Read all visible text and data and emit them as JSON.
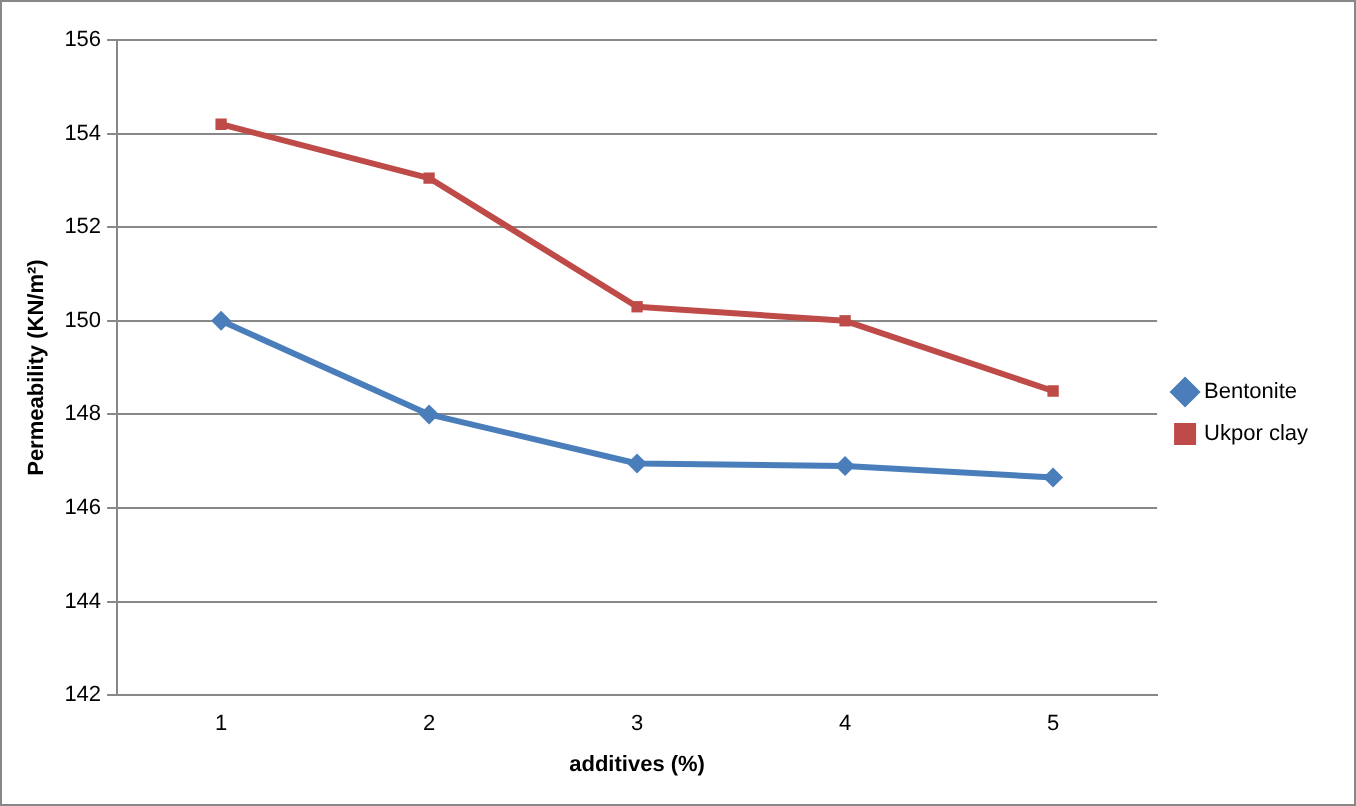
{
  "chart_data": {
    "type": "line",
    "xlabel": "additives (%)",
    "ylabel": "Permeability (KN/m²)",
    "categories": [
      "1",
      "2",
      "3",
      "4",
      "5"
    ],
    "series": [
      {
        "name": "Bentonite",
        "color": "#4a7ebb",
        "marker": "diamond",
        "values": [
          150,
          148,
          146.95,
          146.9,
          146.65
        ]
      },
      {
        "name": "Ukpor clay",
        "color": "#be4b48",
        "marker": "square",
        "values": [
          154.2,
          153.05,
          150.3,
          150,
          148.5
        ]
      }
    ],
    "ylim": [
      142,
      156
    ],
    "yticks": [
      142,
      144,
      146,
      148,
      150,
      152,
      154,
      156
    ],
    "grid": "y",
    "legend": "right",
    "line_style": "solid"
  }
}
